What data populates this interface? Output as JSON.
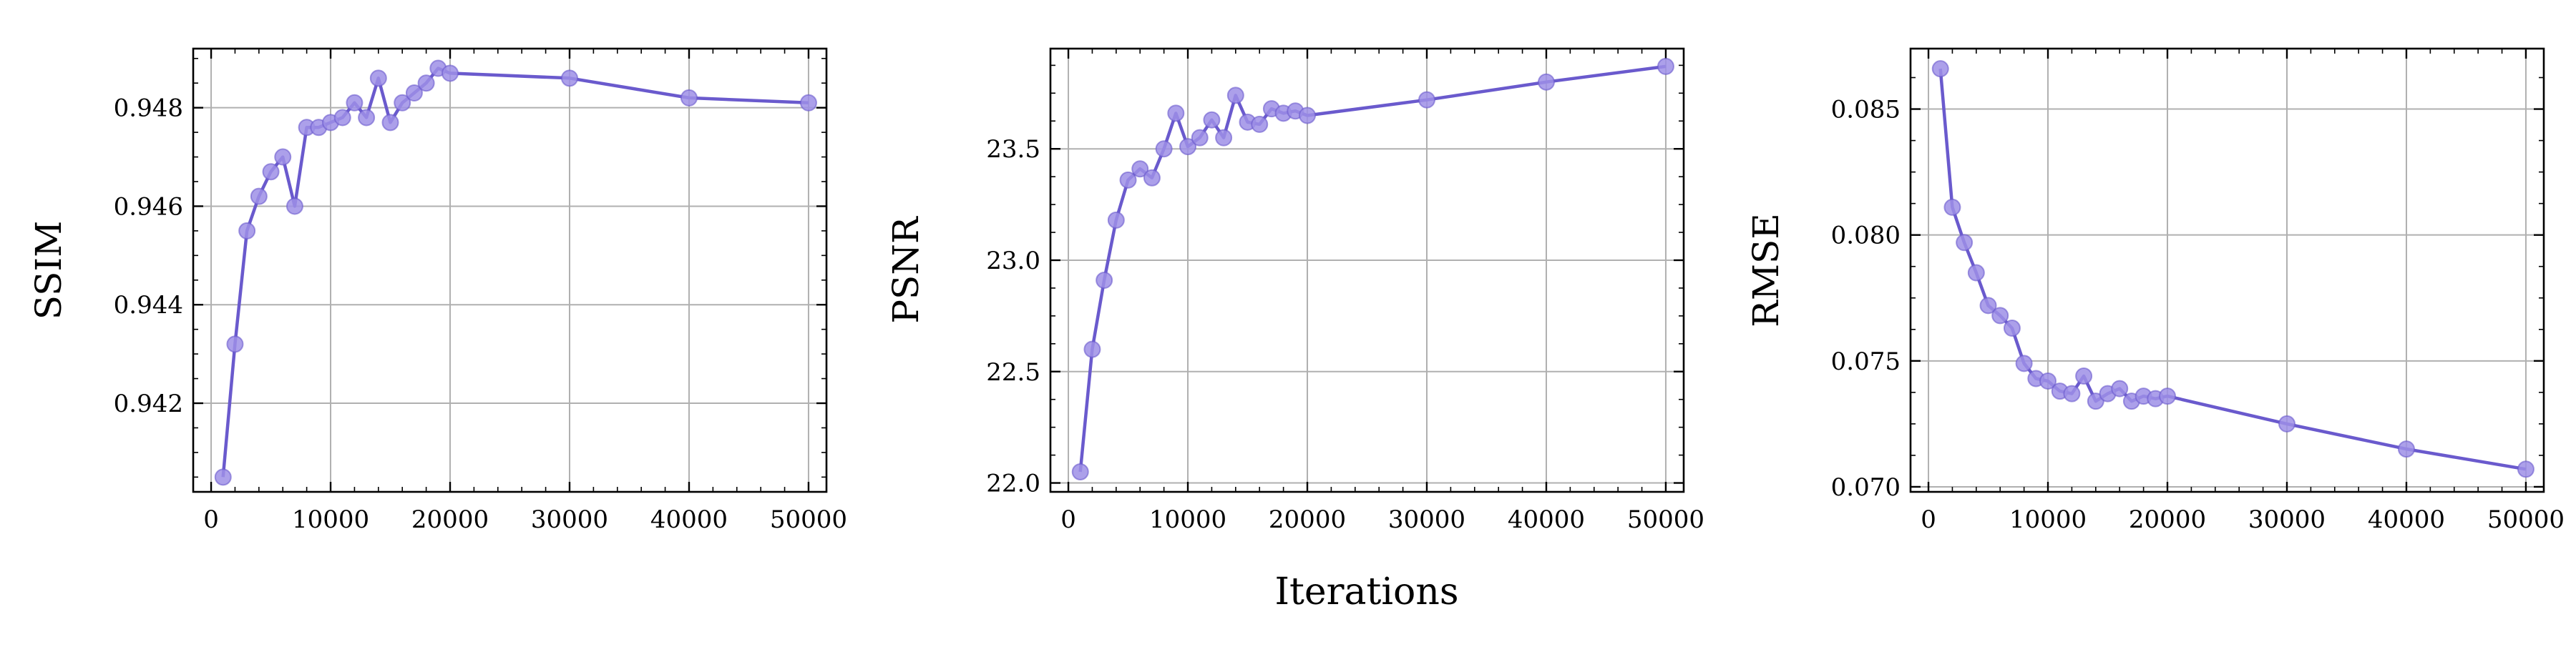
{
  "figure": {
    "xlabel": "Iterations"
  },
  "style": {
    "line_color": "#6a5acd",
    "marker_color": "#9d8fe6",
    "grid_color": "#b0b0b0"
  },
  "chart_data": [
    {
      "type": "line",
      "ylabel": "SSIM",
      "xlim": [
        -1500,
        51500
      ],
      "ylim": [
        0.9402,
        0.9492
      ],
      "xticks": [
        0,
        10000,
        20000,
        30000,
        40000,
        50000
      ],
      "xtick_labels": [
        "0",
        "10000",
        "20000",
        "30000",
        "40000",
        "50000"
      ],
      "yticks": [
        0.942,
        0.944,
        0.946,
        0.948
      ],
      "ytick_labels": [
        "0.942",
        "0.944",
        "0.946",
        "0.948"
      ],
      "grid": true,
      "x": [
        1000,
        2000,
        3000,
        4000,
        5000,
        6000,
        7000,
        8000,
        9000,
        10000,
        11000,
        12000,
        13000,
        14000,
        15000,
        16000,
        17000,
        18000,
        19000,
        20000,
        30000,
        40000,
        50000
      ],
      "values": [
        0.9405,
        0.9432,
        0.9455,
        0.9462,
        0.9467,
        0.947,
        0.946,
        0.9476,
        0.9476,
        0.9477,
        0.9478,
        0.9481,
        0.9478,
        0.9486,
        0.9477,
        0.9481,
        0.9483,
        0.9485,
        0.9488,
        0.9487,
        0.9486,
        0.9482,
        0.9481
      ]
    },
    {
      "type": "line",
      "ylabel": "PSNR",
      "xlim": [
        -1500,
        51500
      ],
      "ylim": [
        21.96,
        23.95
      ],
      "xticks": [
        0,
        10000,
        20000,
        30000,
        40000,
        50000
      ],
      "xtick_labels": [
        "0",
        "10000",
        "20000",
        "30000",
        "40000",
        "50000"
      ],
      "yticks": [
        22.0,
        22.5,
        23.0,
        23.5
      ],
      "ytick_labels": [
        "22.0",
        "22.5",
        "23.0",
        "23.5"
      ],
      "grid": true,
      "x": [
        1000,
        2000,
        3000,
        4000,
        5000,
        6000,
        7000,
        8000,
        9000,
        10000,
        11000,
        12000,
        13000,
        14000,
        15000,
        16000,
        17000,
        18000,
        19000,
        20000,
        30000,
        40000,
        50000
      ],
      "values": [
        22.05,
        22.6,
        22.91,
        23.18,
        23.36,
        23.41,
        23.37,
        23.5,
        23.66,
        23.51,
        23.55,
        23.63,
        23.55,
        23.74,
        23.62,
        23.61,
        23.68,
        23.66,
        23.67,
        23.65,
        23.72,
        23.8,
        23.87
      ]
    },
    {
      "type": "line",
      "ylabel": "RMSE",
      "xlim": [
        -1500,
        51500
      ],
      "ylim": [
        0.0698,
        0.0874
      ],
      "xticks": [
        0,
        10000,
        20000,
        30000,
        40000,
        50000
      ],
      "xtick_labels": [
        "0",
        "10000",
        "20000",
        "30000",
        "40000",
        "50000"
      ],
      "yticks": [
        0.07,
        0.075,
        0.08,
        0.085
      ],
      "ytick_labels": [
        "0.070",
        "0.075",
        "0.080",
        "0.085"
      ],
      "grid": true,
      "x": [
        1000,
        2000,
        3000,
        4000,
        5000,
        6000,
        7000,
        8000,
        9000,
        10000,
        11000,
        12000,
        13000,
        14000,
        15000,
        16000,
        17000,
        18000,
        19000,
        20000,
        30000,
        40000,
        50000
      ],
      "values": [
        0.0866,
        0.0811,
        0.0797,
        0.0785,
        0.0772,
        0.0768,
        0.0763,
        0.0749,
        0.0743,
        0.0742,
        0.0738,
        0.0737,
        0.0744,
        0.0734,
        0.0737,
        0.0739,
        0.0734,
        0.0736,
        0.0735,
        0.0736,
        0.0725,
        0.0715,
        0.0707
      ]
    }
  ]
}
